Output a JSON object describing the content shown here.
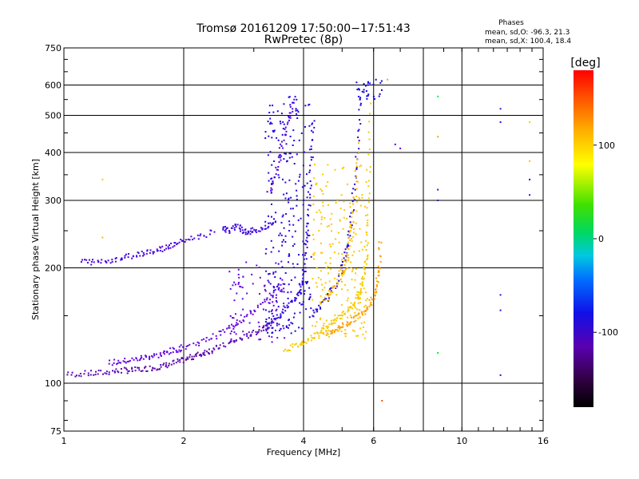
{
  "chart_data": {
    "type": "scatter",
    "title": "Tromsø 20161209 17:50:00−17:51:43",
    "subtitle": "RwPretec (8p)",
    "xlabel": "Frequency [MHz]",
    "ylabel": "Stationary phase Virtual Height [km]",
    "x_scale": "log",
    "y_scale": "log",
    "xlim": [
      1,
      16
    ],
    "ylim": [
      75,
      750
    ],
    "x_ticks": [
      1,
      2,
      4,
      6,
      10,
      16
    ],
    "x_minor_gridlines": [
      8
    ],
    "y_ticks": [
      75,
      100,
      200,
      300,
      400,
      500,
      600,
      750
    ],
    "grid": true,
    "stats": {
      "heading": "Phases",
      "o_line": "mean, sd,O: -96.3, 21.3",
      "x_line": "mean, sd,X: 100.4, 18.4"
    },
    "colorbar": {
      "label": "[deg]",
      "range": [
        -180,
        180
      ],
      "ticks": [
        100,
        0,
        -100
      ],
      "colormap": "rainbow"
    },
    "traces": [
      {
        "key": "o_low",
        "color_deg": -140,
        "x": [
          1.0,
          1.1,
          1.2,
          1.3,
          1.4,
          1.5,
          1.6,
          1.7,
          1.8,
          1.9,
          2.0,
          2.1,
          2.2,
          2.3,
          2.4,
          2.6,
          2.8,
          3.0,
          3.2,
          3.4
        ],
        "y": [
          105,
          106,
          106,
          107,
          108,
          108,
          109,
          110,
          111,
          113,
          115,
          117,
          119,
          121,
          123,
          127,
          131,
          135,
          140,
          146
        ]
      },
      {
        "key": "o_upper",
        "color_deg": -125,
        "x": [
          1.3,
          1.4,
          1.5,
          1.6,
          1.7,
          1.8,
          1.9,
          2.0,
          2.2,
          2.4,
          2.6,
          2.8,
          3.0,
          3.2,
          3.4,
          3.6
        ],
        "y": [
          113,
          114,
          115,
          117,
          118,
          120,
          122,
          124,
          128,
          133,
          139,
          146,
          154,
          163,
          172,
          182
        ]
      },
      {
        "key": "f_trace",
        "color_deg": -105,
        "x": [
          3.2,
          3.4,
          3.6,
          3.8,
          3.9,
          4.0,
          4.05,
          4.1,
          4.15,
          4.2,
          4.25
        ],
        "y": [
          142,
          148,
          155,
          165,
          175,
          190,
          215,
          250,
          320,
          420,
          500
        ]
      },
      {
        "key": "f_outer",
        "color_deg": -100,
        "x": [
          4.2,
          4.4,
          4.6,
          4.8,
          5.0,
          5.1,
          5.2,
          5.3,
          5.4,
          5.5,
          5.6
        ],
        "y": [
          150,
          158,
          168,
          180,
          198,
          215,
          240,
          280,
          350,
          450,
          600
        ]
      },
      {
        "key": "x_trace",
        "color_deg": 100,
        "x": [
          3.6,
          3.8,
          4.0,
          4.2,
          4.4,
          4.6,
          4.8,
          5.0,
          5.2,
          5.4,
          5.5,
          5.6,
          5.7,
          5.75,
          5.8,
          5.85,
          5.9
        ],
        "y": [
          122,
          125,
          128,
          132,
          136,
          140,
          145,
          150,
          156,
          163,
          170,
          180,
          195,
          215,
          260,
          350,
          560
        ]
      },
      {
        "key": "x_outer",
        "color_deg": 120,
        "x": [
          4.6,
          4.8,
          5.0,
          5.2,
          5.4,
          5.6,
          5.8,
          6.0,
          6.1,
          6.2,
          6.25
        ],
        "y": [
          135,
          138,
          141,
          144,
          148,
          152,
          158,
          168,
          180,
          200,
          240
        ]
      },
      {
        "key": "x_inner",
        "color_deg": 110,
        "x": [
          4.6,
          4.8,
          5.0,
          5.1,
          5.2,
          5.3,
          5.4,
          5.5
        ],
        "y": [
          170,
          178,
          190,
          205,
          225,
          260,
          320,
          430
        ]
      },
      {
        "key": "mid_band",
        "color_deg": -110,
        "x": [
          2.5,
          2.6,
          2.7,
          2.8,
          2.9,
          3.0,
          3.2,
          3.4
        ],
        "y": [
          255,
          250,
          258,
          252,
          248,
          250,
          255,
          262
        ]
      },
      {
        "key": "low_band",
        "color_deg": -115,
        "x": [
          1.1,
          1.2,
          1.3,
          1.4,
          1.5,
          1.6,
          1.7,
          1.8,
          1.9,
          2.0,
          2.2,
          2.4
        ],
        "y": [
          208,
          207,
          209,
          212,
          216,
          220,
          222,
          226,
          230,
          236,
          242,
          248
        ]
      },
      {
        "key": "f2_sparse",
        "color_deg": -118,
        "x": [
          3.3,
          3.4,
          3.5,
          3.6,
          3.7,
          3.8
        ],
        "y": [
          310,
          350,
          400,
          450,
          500,
          550
        ]
      }
    ],
    "clusters": [
      {
        "key": "f_cloud",
        "color_deg": -100,
        "x": [
          3.2,
          4.2
        ],
        "y": [
          135,
          560
        ],
        "n": 260
      },
      {
        "key": "x_cloud",
        "color_deg": 105,
        "x": [
          4.2,
          5.8
        ],
        "y": [
          130,
          380
        ],
        "n": 220
      },
      {
        "key": "o_cloud",
        "color_deg": -125,
        "x": [
          2.6,
          3.6
        ],
        "y": [
          128,
          210
        ],
        "n": 90
      },
      {
        "key": "top_cluster",
        "color_deg": -95,
        "x": [
          5.4,
          6.3
        ],
        "y": [
          550,
          620
        ],
        "n": 30
      }
    ],
    "points": [
      {
        "x": 8.7,
        "y": 560,
        "color_deg": 20
      },
      {
        "x": 8.7,
        "y": 440,
        "color_deg": 120
      },
      {
        "x": 8.7,
        "y": 320,
        "color_deg": -110
      },
      {
        "x": 8.7,
        "y": 300,
        "color_deg": -110
      },
      {
        "x": 8.7,
        "y": 120,
        "color_deg": 30
      },
      {
        "x": 12.5,
        "y": 520,
        "color_deg": -110
      },
      {
        "x": 12.5,
        "y": 480,
        "color_deg": -110
      },
      {
        "x": 12.5,
        "y": 170,
        "color_deg": -110
      },
      {
        "x": 12.5,
        "y": 155,
        "color_deg": -110
      },
      {
        "x": 12.5,
        "y": 105,
        "color_deg": -110
      },
      {
        "x": 14.8,
        "y": 480,
        "color_deg": 100
      },
      {
        "x": 14.8,
        "y": 380,
        "color_deg": 110
      },
      {
        "x": 14.8,
        "y": 340,
        "color_deg": -100
      },
      {
        "x": 14.8,
        "y": 310,
        "color_deg": -110
      },
      {
        "x": 7.0,
        "y": 410,
        "color_deg": -120
      },
      {
        "x": 6.8,
        "y": 420,
        "color_deg": -120
      },
      {
        "x": 6.5,
        "y": 620,
        "color_deg": 120
      },
      {
        "x": 6.3,
        "y": 90,
        "color_deg": 150
      },
      {
        "x": 1.25,
        "y": 340,
        "color_deg": 100
      },
      {
        "x": 1.25,
        "y": 240,
        "color_deg": 110
      }
    ]
  }
}
